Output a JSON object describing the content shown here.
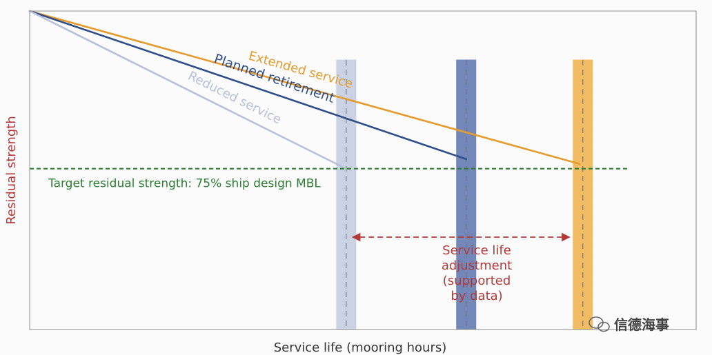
{
  "chart_data": {
    "type": "line",
    "title": "",
    "xlabel": "Service life (mooring hours)",
    "ylabel": "Residual strength",
    "xlim": [
      0,
      100
    ],
    "ylim": [
      0,
      100
    ],
    "grid": false,
    "series": [
      {
        "name": "Extended service",
        "color": "#e49b2c",
        "x": [
          0,
          82.5
        ],
        "y": [
          100,
          52
        ]
      },
      {
        "name": "Planned retirement",
        "color": "#2f4e87",
        "x": [
          0,
          65.5
        ],
        "y": [
          100,
          53.5
        ]
      },
      {
        "name": "Reduced service",
        "color": "#b7c0d8",
        "x": [
          0,
          47
        ],
        "y": [
          100,
          51
        ]
      }
    ],
    "target_line": {
      "label": "Target residual strength: 75% ship design MBL",
      "y": 50.5,
      "color": "#2e7d32"
    },
    "retirement_bands": [
      {
        "name": "reduced-service-band",
        "x": 47.5,
        "color": "#c9d0e2"
      },
      {
        "name": "planned-retirement-band",
        "x": 65.5,
        "color": "#6c81b5"
      },
      {
        "name": "extended-service-band",
        "x": 83,
        "color": "#f2b95c"
      }
    ],
    "adjustment_arrow": {
      "x_from": 49.5,
      "x_to": 81,
      "y": 29,
      "color": "#b23a3a",
      "label_lines": [
        "Service life",
        "adjustment",
        "(supported",
        "by data)"
      ]
    }
  },
  "watermark": {
    "text": "信德海事"
  }
}
